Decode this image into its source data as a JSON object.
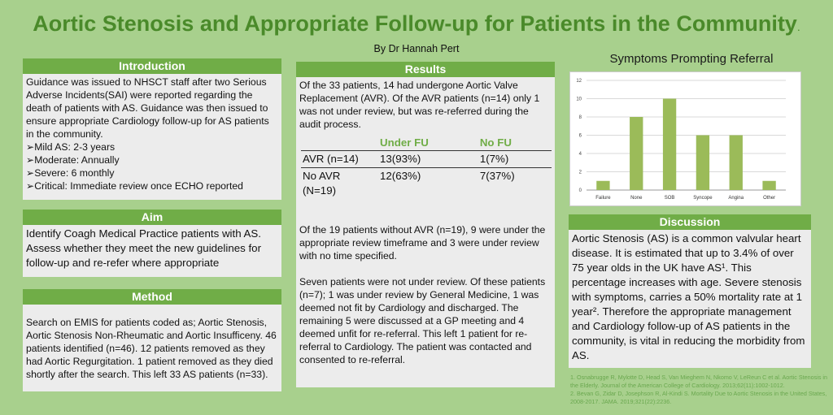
{
  "title": "Aortic Stenosis and Appropriate Follow-up for Patients in the Community",
  "title_suffix": ".",
  "author": "By Dr Hannah Pert",
  "introduction": {
    "heading": "Introduction",
    "text": "Guidance was issued to NHSCT staff after two Serious Adverse Incidents(SAI) were reported regarding the death of patients with AS. Guidance was then issued to ensure appropriate Cardiology follow-up for AS patients in the community.",
    "items": [
      "Mild AS: 2-3 years",
      "Moderate: Annually",
      "Severe: 6 monthly",
      "Critical: Immediate review once ECHO reported"
    ]
  },
  "aim": {
    "heading": "Aim",
    "text": "Identify Coagh Medical Practice patients with AS. Assess whether they meet the new guidelines for follow-up and re-refer where appropriate"
  },
  "method": {
    "heading": "Method",
    "text": "Search on EMIS for patients coded as; Aortic Stenosis, Aortic Stenosis Non-Rheumatic and Aortic Insufficeny. 46 patients identified (n=46). 12 patients removed as they had Aortic Regurgitation. 1 patient removed as they died shortly after the search. This left 33 AS patients (n=33)."
  },
  "results": {
    "heading": "Results",
    "p1": "Of the 33 patients, 14 had undergone Aortic Valve Replacement (AVR). Of the AVR patients (n=14) only 1 was not under review, but was re-referred during the audit process.",
    "table": {
      "headers": [
        "",
        "Under FU",
        "No FU"
      ],
      "rows": [
        [
          "AVR (n=14)",
          "13(93%)",
          "1(7%)"
        ],
        [
          "No AVR (N=19)",
          "12(63%)",
          "7(37%)"
        ]
      ]
    },
    "p2": "Of the 19 patients without AVR (n=19), 9 were under the appropriate review timeframe and 3 were under review with no time specified.",
    "p3": "Seven patients were not under review. Of these patients (n=7); 1 was under review by General Medicine, 1 was deemed not fit by Cardiology and discharged. The remaining 5 were discussed at a GP meeting and 4 deemed unfit for re-referral. This left 1 patient for re-referral to Cardiology. The patient was contacted and consented to re-referral."
  },
  "chart_data": {
    "type": "bar",
    "title": "Symptoms Prompting Referral",
    "categories": [
      "Failure",
      "None",
      "SOB",
      "Syncope",
      "Angina",
      "Other"
    ],
    "values": [
      1,
      8,
      10,
      6,
      6,
      1
    ],
    "ylim": [
      0,
      12
    ],
    "yticks": [
      0,
      2,
      4,
      6,
      8,
      10,
      12
    ],
    "grid": true,
    "color": "#9bbb59",
    "xlabel": "",
    "ylabel": ""
  },
  "discussion": {
    "heading": "Discussion",
    "text": "Aortic Stenosis (AS) is a common valvular heart disease. It is estimated that up to 3.4% of over 75 year olds in the UK have AS¹. This percentage increases with age. Severe stenosis with symptoms, carries a 50% mortality rate at 1 year². Therefore the appropriate management and Cardiology follow-up of AS patients in the community, is vital in reducing the morbidity from AS."
  },
  "references": [
    "1. Osnabrugge R, Mylotte D, Head S, Van Mieghem N, Nkomo V, LeReun C et al. Aortic Stenosis in the Elderly. Journal of the American College of Cardiology. 2013;62(11):1002-1012.",
    "2. Bevan G, Zidar D, Josephson R, Al-Kindi S. Mortality Due to Aortic Stenosis in the United States, 2008-2017. JAMA. 2019;321(22):2236."
  ]
}
